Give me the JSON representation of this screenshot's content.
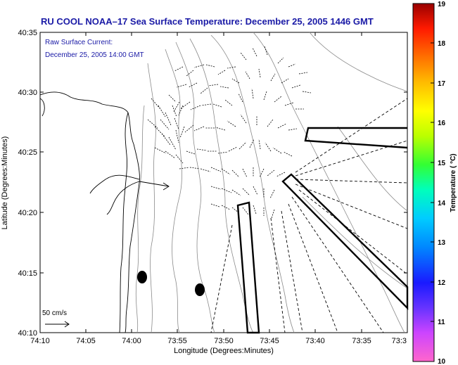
{
  "title": "RU COOL  NOAA–17  Sea Surface Temperature:  December 25, 2005 1446 GMT",
  "legend": {
    "line1": "Raw Surface Current:",
    "line2": "December 25, 2005 14:00 GMT",
    "scale_label": "50 cm/s"
  },
  "axes": {
    "xlabel": "Longitude (Degrees:Minutes)",
    "ylabel": "Latitude (Degrees:Minutes)",
    "xticks": [
      "74:10",
      "74:05",
      "74:00",
      "73:55",
      "73:50",
      "73:45",
      "73:40",
      "73:35",
      "73:3"
    ],
    "yticks": [
      "40:35",
      "40:30",
      "40:25",
      "40:20",
      "40:15",
      "40:10"
    ]
  },
  "colorbar": {
    "label": "Temperature ( °C)",
    "ticks": [
      "19",
      "18",
      "17",
      "16",
      "15",
      "14",
      "13",
      "12",
      "11",
      "10"
    ]
  }
}
